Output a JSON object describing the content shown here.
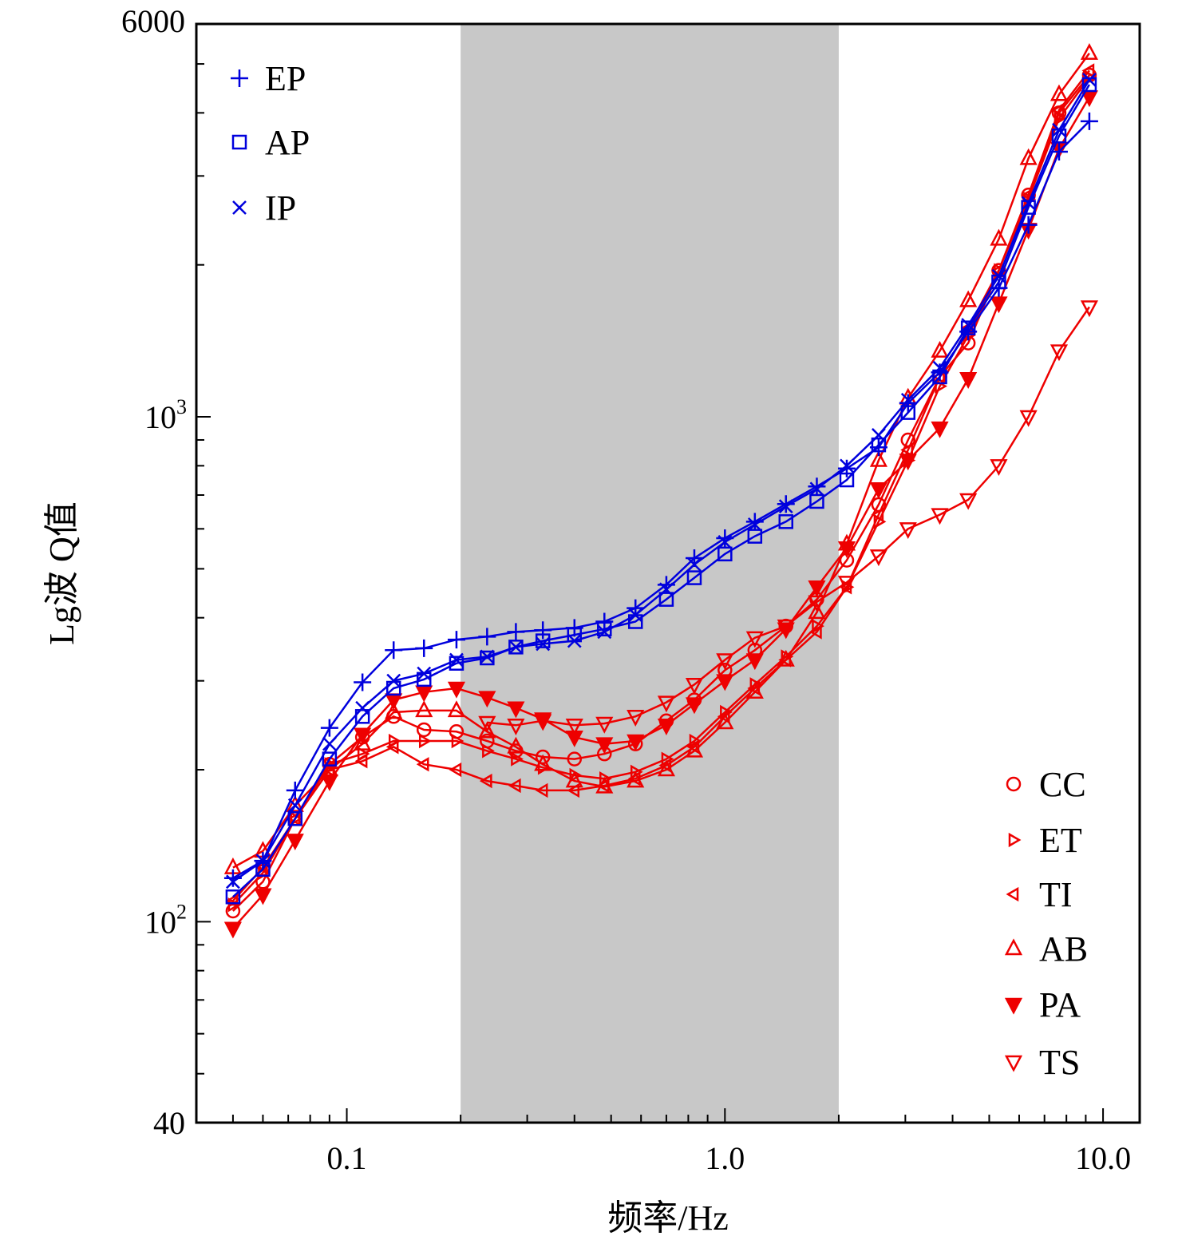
{
  "chart_data": {
    "type": "line",
    "xlabel": "频率/Hz",
    "ylabel": "Lg波 Q值",
    "x_scale": "log",
    "y_scale": "log",
    "xlim": [
      0.04,
      12.5
    ],
    "ylim": [
      40,
      6000
    ],
    "x_ticks": [
      {
        "value": 0.1,
        "label": "0.1"
      },
      {
        "value": 1.0,
        "label": "1.0"
      },
      {
        "value": 10.0,
        "label": "10.0"
      }
    ],
    "y_ticks": [
      {
        "value": 40,
        "label": "40"
      },
      {
        "value": 100,
        "base": "10",
        "exp": "2"
      },
      {
        "value": 1000,
        "base": "10",
        "exp": "3"
      },
      {
        "value": 6000,
        "label": "6000"
      }
    ],
    "shaded_band": {
      "x_from": 0.2,
      "x_to": 2.0,
      "color": "#c8c8c8"
    },
    "legend_top_left": [
      "EP",
      "AP",
      "IP"
    ],
    "legend_bottom_right": [
      "CC",
      "ET",
      "TI",
      "AB",
      "PA",
      "TS"
    ],
    "colors": {
      "blue": "#0000dd",
      "red": "#ee0000"
    },
    "x": [
      0.05,
      0.06,
      0.073,
      0.09,
      0.11,
      0.133,
      0.16,
      0.195,
      0.235,
      0.28,
      0.33,
      0.4,
      0.48,
      0.58,
      0.7,
      0.83,
      1.0,
      1.2,
      1.45,
      1.75,
      2.1,
      2.55,
      3.05,
      3.7,
      4.4,
      5.3,
      6.35,
      7.65,
      9.2
    ],
    "series": [
      {
        "name": "EP",
        "color": "blue",
        "marker": "plus",
        "values": [
          122,
          132,
          182,
          242,
          298,
          345,
          348,
          362,
          367,
          375,
          378,
          382,
          393,
          418,
          465,
          525,
          575,
          620,
          672,
          728,
          790,
          870,
          1065,
          1225,
          1475,
          1800,
          2400,
          3350,
          3850
        ]
      },
      {
        "name": "AP",
        "color": "blue",
        "marker": "square",
        "values": [
          112,
          127,
          160,
          210,
          255,
          290,
          302,
          325,
          333,
          350,
          360,
          370,
          380,
          393,
          435,
          480,
          535,
          580,
          620,
          680,
          750,
          880,
          1020,
          1200,
          1500,
          1850,
          2600,
          3600,
          4550
        ]
      },
      {
        "name": "IP",
        "color": "blue",
        "marker": "x",
        "values": [
          120,
          132,
          170,
          225,
          265,
          300,
          310,
          330,
          335,
          350,
          355,
          360,
          375,
          405,
          455,
          510,
          565,
          612,
          665,
          720,
          800,
          920,
          1080,
          1250,
          1520,
          1900,
          2650,
          3700,
          4650
        ]
      },
      {
        "name": "CC",
        "color": "red",
        "marker": "circle",
        "values": [
          105,
          120,
          160,
          205,
          232,
          255,
          240,
          238,
          228,
          218,
          212,
          210,
          215,
          225,
          250,
          275,
          315,
          345,
          385,
          435,
          520,
          670,
          900,
          1200,
          1400,
          1950,
          2750,
          4000,
          4750
        ]
      },
      {
        "name": "ET",
        "color": "red",
        "marker": "tri-right",
        "values": [
          108,
          125,
          160,
          205,
          215,
          228,
          228,
          228,
          218,
          210,
          202,
          195,
          192,
          198,
          210,
          228,
          260,
          295,
          335,
          385,
          460,
          620,
          820,
          1150,
          1450,
          1950,
          2700,
          3900,
          4700
        ]
      },
      {
        "name": "TI",
        "color": "red",
        "marker": "tri-left",
        "values": [
          110,
          128,
          160,
          200,
          208,
          222,
          205,
          200,
          190,
          186,
          182,
          182,
          186,
          192,
          204,
          222,
          255,
          290,
          330,
          375,
          460,
          640,
          860,
          1200,
          1500,
          1950,
          2750,
          4050,
          4850
        ]
      },
      {
        "name": "AB",
        "color": "red",
        "marker": "tri-up",
        "values": [
          128,
          138,
          170,
          200,
          225,
          260,
          262,
          262,
          238,
          222,
          205,
          190,
          185,
          190,
          200,
          218,
          248,
          285,
          330,
          410,
          560,
          820,
          1090,
          1350,
          1700,
          2250,
          3250,
          4350,
          5250
        ]
      },
      {
        "name": "PA",
        "color": "red",
        "marker": "tri-down-filled",
        "values": [
          97,
          113,
          145,
          190,
          235,
          275,
          285,
          290,
          278,
          265,
          252,
          232,
          225,
          228,
          245,
          270,
          300,
          330,
          380,
          460,
          550,
          720,
          820,
          950,
          1190,
          1680,
          2350,
          3400,
          4300
        ]
      },
      {
        "name": "TS",
        "color": "red",
        "marker": "tri-down",
        "values": [
          null,
          null,
          null,
          null,
          null,
          null,
          null,
          null,
          248,
          245,
          250,
          245,
          247,
          255,
          272,
          295,
          330,
          365,
          385,
          430,
          470,
          530,
          600,
          640,
          685,
          800,
          1000,
          1350,
          1650
        ]
      }
    ]
  }
}
